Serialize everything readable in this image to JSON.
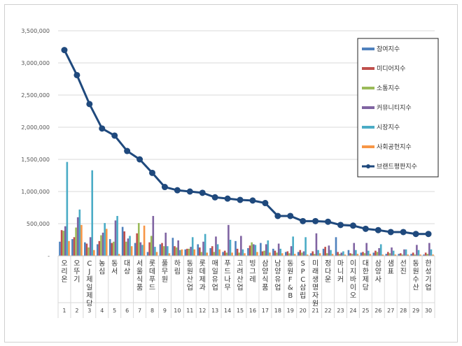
{
  "chart_data": {
    "type": "bar",
    "title": "",
    "xlabel": "",
    "ylabel": "",
    "ylim": [
      0,
      3500000
    ],
    "yticks": [
      0,
      500000,
      1000000,
      1500000,
      2000000,
      2500000,
      3000000,
      3500000
    ],
    "ytick_labels": [
      "-",
      "500,000",
      "1,000,000",
      "1,500,000",
      "2,000,000",
      "2,500,000",
      "3,000,000",
      "3,500,000"
    ],
    "ranks": [
      "1",
      "2",
      "3",
      "4",
      "5",
      "6",
      "7",
      "8",
      "9",
      "10",
      "11",
      "12",
      "13",
      "14",
      "15",
      "16",
      "17",
      "18",
      "19",
      "20",
      "21",
      "22",
      "23",
      "24",
      "25",
      "26",
      "27",
      "28",
      "29",
      "30"
    ],
    "categories": [
      "오리온",
      "오뚜기",
      "CJ제일제당",
      "농심",
      "동서",
      "대상",
      "서울식품",
      "롯데푸드",
      "풀무원",
      "하림",
      "동원산업",
      "롯데제과",
      "매일유업",
      "푸드나무",
      "고려산업",
      "빙그레",
      "삼양식품",
      "남양유업",
      "동원F&B",
      "SPC삼립",
      "미래생명자원",
      "정다운",
      "마니커",
      "이지바이오",
      "대한제당",
      "삼양사",
      "샘표",
      "선진",
      "동원수산",
      "한성기업"
    ],
    "series": [
      {
        "name": "참여지수",
        "color": "#4f81bd",
        "values": [
          220000,
          260000,
          210000,
          180000,
          260000,
          450000,
          200000,
          60000,
          180000,
          280000,
          100000,
          180000,
          120000,
          60000,
          230000,
          120000,
          200000,
          110000,
          60000,
          60000,
          40000,
          110000,
          290000,
          90000,
          50000,
          50000,
          30000,
          30000,
          30000,
          20000
        ]
      },
      {
        "name": "미디어지수",
        "color": "#c0504d",
        "values": [
          400000,
          290000,
          190000,
          230000,
          200000,
          380000,
          350000,
          210000,
          200000,
          150000,
          110000,
          130000,
          150000,
          80000,
          110000,
          160000,
          70000,
          80000,
          70000,
          90000,
          70000,
          140000,
          60000,
          40000,
          60000,
          80000,
          60000,
          40000,
          50000,
          50000
        ]
      },
      {
        "name": "소통지수",
        "color": "#9bbb59",
        "values": [
          390000,
          440000,
          130000,
          320000,
          220000,
          220000,
          510000,
          310000,
          150000,
          130000,
          110000,
          60000,
          60000,
          50000,
          50000,
          210000,
          80000,
          50000,
          40000,
          50000,
          30000,
          40000,
          30000,
          30000,
          40000,
          60000,
          40000,
          20000,
          20000,
          30000
        ]
      },
      {
        "name": "커뮤니티지수",
        "color": "#8064a2",
        "values": [
          460000,
          600000,
          290000,
          360000,
          550000,
          270000,
          210000,
          620000,
          360000,
          240000,
          140000,
          220000,
          300000,
          480000,
          310000,
          180000,
          180000,
          190000,
          150000,
          70000,
          350000,
          160000,
          50000,
          200000,
          200000,
          120000,
          130000,
          100000,
          170000,
          200000
        ]
      },
      {
        "name": "시장지수",
        "color": "#4bacc6",
        "values": [
          1460000,
          720000,
          1330000,
          510000,
          620000,
          310000,
          170000,
          140000,
          150000,
          90000,
          290000,
          340000,
          180000,
          250000,
          100000,
          170000,
          240000,
          110000,
          300000,
          290000,
          90000,
          90000,
          70000,
          90000,
          80000,
          180000,
          80000,
          100000,
          90000,
          100000
        ]
      },
      {
        "name": "사회공헌지수",
        "color": "#f79646",
        "values": [
          230000,
          480000,
          90000,
          420000,
          30000,
          150000,
          470000,
          60000,
          40000,
          100000,
          100000,
          50000,
          100000,
          50000,
          40000,
          60000,
          50000,
          40000,
          30000,
          20000,
          40000,
          30000,
          20000,
          30000,
          30000,
          20000,
          20000,
          20000,
          20000,
          20000
        ]
      },
      {
        "name": "브랜드평판지수",
        "color": "#1f497d",
        "type": "line",
        "values": [
          3200000,
          2810000,
          2360000,
          1980000,
          1870000,
          1630000,
          1500000,
          1290000,
          1070000,
          1020000,
          1000000,
          980000,
          910000,
          890000,
          870000,
          860000,
          820000,
          620000,
          620000,
          540000,
          540000,
          530000,
          480000,
          470000,
          420000,
          400000,
          370000,
          370000,
          340000,
          340000
        ]
      }
    ],
    "legend_position": "right"
  }
}
